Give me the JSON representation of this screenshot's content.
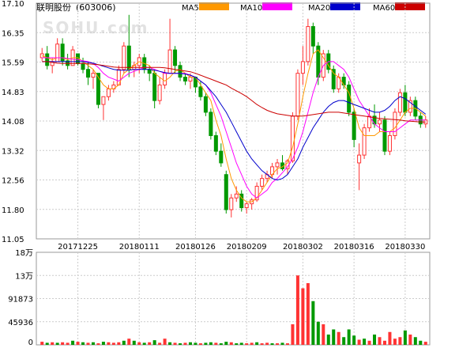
{
  "header": {
    "stock_title": "联明股份",
    "stock_code": "(603006)"
  },
  "watermark": "SOHU.com",
  "legend": [
    {
      "label": "MA5",
      "color": "#ff9900"
    },
    {
      "label": "MA10",
      "color": "#ff00ff"
    },
    {
      "label": "MA20",
      "color": "#0000cc"
    },
    {
      "label": "MA60",
      "color": "#cc0000"
    }
  ],
  "colors": {
    "up": "#ff3333",
    "down": "#009900",
    "grid": "#cccccc",
    "axis": "#999999"
  },
  "chart_data": [
    {
      "type": "candlestick",
      "y_ticks": [
        "17.10",
        "16.35",
        "15.59",
        "14.83",
        "14.08",
        "13.32",
        "12.56",
        "11.80",
        "11.05"
      ],
      "ylim": [
        11.05,
        17.1
      ],
      "x_ticks": [
        {
          "label": "20171225",
          "index": 7
        },
        {
          "label": "20180111",
          "index": 19
        },
        {
          "label": "20180126",
          "index": 30
        },
        {
          "label": "20180209",
          "index": 40
        },
        {
          "label": "20180302",
          "index": 51
        },
        {
          "label": "20180316",
          "index": 61
        },
        {
          "label": "20180330",
          "index": 71
        }
      ],
      "grid": true,
      "ohlc": [
        [
          15.7,
          15.95,
          15.62,
          15.8
        ],
        [
          15.8,
          16.0,
          15.4,
          15.5
        ],
        [
          15.5,
          15.7,
          15.3,
          15.6
        ],
        [
          15.6,
          16.2,
          15.6,
          16.05
        ],
        [
          16.05,
          16.2,
          15.5,
          15.62
        ],
        [
          15.62,
          15.8,
          15.4,
          15.5
        ],
        [
          15.5,
          16.0,
          15.5,
          15.9
        ],
        [
          15.8,
          15.8,
          15.5,
          15.55
        ],
        [
          15.55,
          15.7,
          15.3,
          15.4
        ],
        [
          15.4,
          15.6,
          15.0,
          15.2
        ],
        [
          15.2,
          15.4,
          14.9,
          15.3
        ],
        [
          15.3,
          15.3,
          14.4,
          14.5
        ],
        [
          14.5,
          14.7,
          14.1,
          14.7
        ],
        [
          14.7,
          15.0,
          14.6,
          14.9
        ],
        [
          14.9,
          15.1,
          14.8,
          15.0
        ],
        [
          15.0,
          15.5,
          15.0,
          15.4
        ],
        [
          15.4,
          16.1,
          15.3,
          16.0
        ],
        [
          16.0,
          16.8,
          15.2,
          15.4
        ],
        [
          15.4,
          15.6,
          15.2,
          15.5
        ],
        [
          15.5,
          15.8,
          15.3,
          15.7
        ],
        [
          15.7,
          15.8,
          15.3,
          15.4
        ],
        [
          15.4,
          15.5,
          15.1,
          15.3
        ],
        [
          15.3,
          15.4,
          14.4,
          14.6
        ],
        [
          14.6,
          15.2,
          14.5,
          15.0
        ],
        [
          15.0,
          15.4,
          14.9,
          15.3
        ],
        [
          15.3,
          16.7,
          15.3,
          15.9
        ],
        [
          15.9,
          16.0,
          15.3,
          15.5
        ],
        [
          15.5,
          15.6,
          15.1,
          15.2
        ],
        [
          15.2,
          15.3,
          15.0,
          15.1
        ],
        [
          15.1,
          15.3,
          14.9,
          15.2
        ],
        [
          15.2,
          15.2,
          14.8,
          14.95
        ],
        [
          14.95,
          15.1,
          14.6,
          14.7
        ],
        [
          14.7,
          14.8,
          14.2,
          14.3
        ],
        [
          14.3,
          14.4,
          13.6,
          13.7
        ],
        [
          13.7,
          13.8,
          13.2,
          13.3
        ],
        [
          13.3,
          13.5,
          12.9,
          13.0
        ],
        [
          12.7,
          12.8,
          11.7,
          11.8
        ],
        [
          11.8,
          12.2,
          11.6,
          12.1
        ],
        [
          12.1,
          12.4,
          12.0,
          12.2
        ],
        [
          12.2,
          12.3,
          11.75,
          11.85
        ],
        [
          11.85,
          12.0,
          11.7,
          11.95
        ],
        [
          11.95,
          12.1,
          11.8,
          12.05
        ],
        [
          12.05,
          12.5,
          12.0,
          12.4
        ],
        [
          12.4,
          12.7,
          12.3,
          12.6
        ],
        [
          12.6,
          12.8,
          12.5,
          12.7
        ],
        [
          12.7,
          13.0,
          12.6,
          12.9
        ],
        [
          12.9,
          13.1,
          12.7,
          13.0
        ],
        [
          13.0,
          13.2,
          12.8,
          12.85
        ],
        [
          12.85,
          13.1,
          12.7,
          13.05
        ],
        [
          13.05,
          14.3,
          13.0,
          14.2
        ],
        [
          14.2,
          15.4,
          14.1,
          15.3
        ],
        [
          15.3,
          16.0,
          15.0,
          15.6
        ],
        [
          15.6,
          16.7,
          15.5,
          16.5
        ],
        [
          16.5,
          16.6,
          15.8,
          16.0
        ],
        [
          16.0,
          16.1,
          15.0,
          15.2
        ],
        [
          15.2,
          15.9,
          15.1,
          15.8
        ],
        [
          15.8,
          15.9,
          15.3,
          15.4
        ],
        [
          15.4,
          15.5,
          14.8,
          14.9
        ],
        [
          14.9,
          15.3,
          14.8,
          15.2
        ],
        [
          15.2,
          15.3,
          14.9,
          15.0
        ],
        [
          15.0,
          15.1,
          14.2,
          14.3
        ],
        [
          14.3,
          14.4,
          13.4,
          13.6
        ],
        [
          13.0,
          13.5,
          12.3,
          13.2
        ],
        [
          13.2,
          14.0,
          13.1,
          13.9
        ],
        [
          13.9,
          14.4,
          13.8,
          14.2
        ],
        [
          14.2,
          14.5,
          13.9,
          14.0
        ],
        [
          14.0,
          14.3,
          13.8,
          14.1
        ],
        [
          14.1,
          14.2,
          13.2,
          13.3
        ],
        [
          13.3,
          13.8,
          13.2,
          13.7
        ],
        [
          13.7,
          14.4,
          13.6,
          14.3
        ],
        [
          14.3,
          14.9,
          14.2,
          14.8
        ],
        [
          14.8,
          15.0,
          14.2,
          14.3
        ],
        [
          14.3,
          14.7,
          14.2,
          14.6
        ],
        [
          14.6,
          14.7,
          14.1,
          14.2
        ],
        [
          14.2,
          14.3,
          13.9,
          14.0
        ],
        [
          14.0,
          14.2,
          13.9,
          14.1
        ]
      ],
      "series": [
        {
          "name": "MA5",
          "values": [
            15.75,
            15.7,
            15.65,
            15.7,
            15.7,
            15.65,
            15.7,
            15.7,
            15.6,
            15.5,
            15.4,
            15.2,
            15.0,
            14.9,
            14.9,
            15.0,
            15.3,
            15.4,
            15.5,
            15.6,
            15.55,
            15.5,
            15.3,
            15.2,
            15.1,
            15.2,
            15.35,
            15.4,
            15.3,
            15.2,
            15.2,
            15.0,
            14.8,
            14.6,
            14.1,
            13.7,
            13.1,
            12.6,
            12.3,
            12.1,
            12.0,
            12.0,
            12.1,
            12.3,
            12.5,
            12.7,
            12.85,
            12.9,
            13.0,
            13.4,
            14.0,
            14.7,
            15.3,
            15.8,
            15.9,
            15.7,
            15.5,
            15.3,
            15.2,
            15.0,
            14.8,
            14.4,
            13.9,
            13.7,
            13.7,
            13.7,
            13.8,
            13.8,
            13.8,
            13.9,
            14.1,
            14.3,
            14.4,
            14.4,
            14.3,
            14.2
          ]
        },
        {
          "name": "MA10",
          "values": [
            15.7,
            15.7,
            15.7,
            15.7,
            15.7,
            15.68,
            15.66,
            15.65,
            15.62,
            15.6,
            15.55,
            15.45,
            15.3,
            15.2,
            15.15,
            15.1,
            15.2,
            15.3,
            15.35,
            15.4,
            15.45,
            15.45,
            15.4,
            15.35,
            15.3,
            15.3,
            15.3,
            15.3,
            15.3,
            15.25,
            15.2,
            15.1,
            15.0,
            14.8,
            14.5,
            14.2,
            13.8,
            13.4,
            13.0,
            12.7,
            12.4,
            12.2,
            12.1,
            12.2,
            12.3,
            12.5,
            12.6,
            12.75,
            12.9,
            13.1,
            13.4,
            13.8,
            14.3,
            14.8,
            15.2,
            15.5,
            15.6,
            15.6,
            15.5,
            15.4,
            15.2,
            14.9,
            14.6,
            14.4,
            14.2,
            14.0,
            13.9,
            13.8,
            13.8,
            13.8,
            13.9,
            14.0,
            14.1,
            14.1,
            14.1,
            14.1
          ]
        },
        {
          "name": "MA20",
          "values": [
            15.6,
            15.6,
            15.6,
            15.6,
            15.6,
            15.6,
            15.6,
            15.6,
            15.6,
            15.58,
            15.56,
            15.52,
            15.48,
            15.44,
            15.4,
            15.38,
            15.38,
            15.38,
            15.4,
            15.4,
            15.4,
            15.4,
            15.38,
            15.35,
            15.32,
            15.3,
            15.3,
            15.3,
            15.28,
            15.25,
            15.2,
            15.1,
            15.0,
            14.85,
            14.7,
            14.5,
            14.3,
            14.05,
            13.8,
            13.55,
            13.3,
            13.1,
            12.95,
            12.8,
            12.7,
            12.6,
            12.56,
            12.6,
            12.7,
            12.9,
            13.1,
            13.4,
            13.65,
            13.9,
            14.1,
            14.3,
            14.45,
            14.55,
            14.6,
            14.6,
            14.55,
            14.5,
            14.45,
            14.4,
            14.35,
            14.3,
            14.3,
            14.35,
            14.45,
            14.6,
            14.7,
            14.65,
            14.55,
            14.45,
            14.35,
            14.25
          ]
        },
        {
          "name": "MA60",
          "values": [
            15.6,
            15.6,
            15.58,
            15.56,
            15.55,
            15.55,
            15.55,
            15.55,
            15.55,
            15.54,
            15.53,
            15.52,
            15.5,
            15.48,
            15.46,
            15.45,
            15.45,
            15.45,
            15.45,
            15.45,
            15.45,
            15.45,
            15.45,
            15.45,
            15.44,
            15.42,
            15.4,
            15.38,
            15.36,
            15.34,
            15.3,
            15.25,
            15.2,
            15.15,
            15.1,
            15.05,
            15.0,
            14.92,
            14.85,
            14.78,
            14.7,
            14.6,
            14.5,
            14.42,
            14.35,
            14.3,
            14.26,
            14.24,
            14.22,
            14.2,
            14.2,
            14.2,
            14.22,
            14.24,
            14.26,
            14.28,
            14.3,
            14.3,
            14.3,
            14.28,
            14.26,
            14.24,
            14.22,
            14.2,
            14.18,
            14.16,
            14.14,
            14.13,
            14.12,
            14.11,
            14.1,
            14.08,
            14.07,
            14.06,
            14.05,
            14.05
          ]
        }
      ]
    },
    {
      "type": "bar",
      "y_ticks": [
        "18万",
        "13万",
        "91873",
        "45936",
        "0"
      ],
      "ylim": [
        0,
        180000
      ],
      "volumes": [
        [
          6000,
          "up"
        ],
        [
          4000,
          "down"
        ],
        [
          5000,
          "up"
        ],
        [
          4000,
          "down"
        ],
        [
          5000,
          "up"
        ],
        [
          4000,
          "up"
        ],
        [
          8000,
          "down"
        ],
        [
          6000,
          "up"
        ],
        [
          5000,
          "down"
        ],
        [
          4000,
          "up"
        ],
        [
          5000,
          "down"
        ],
        [
          3000,
          "up"
        ],
        [
          6000,
          "down"
        ],
        [
          5000,
          "up"
        ],
        [
          4000,
          "up"
        ],
        [
          5000,
          "up"
        ],
        [
          8000,
          "down"
        ],
        [
          12000,
          "up"
        ],
        [
          8000,
          "down"
        ],
        [
          5000,
          "up"
        ],
        [
          4000,
          "down"
        ],
        [
          5000,
          "up"
        ],
        [
          9000,
          "down"
        ],
        [
          4000,
          "up"
        ],
        [
          12000,
          "up"
        ],
        [
          5000,
          "down"
        ],
        [
          4000,
          "up"
        ],
        [
          3000,
          "down"
        ],
        [
          4000,
          "up"
        ],
        [
          5000,
          "down"
        ],
        [
          4000,
          "down"
        ],
        [
          3000,
          "up"
        ],
        [
          4000,
          "down"
        ],
        [
          5000,
          "down"
        ],
        [
          4000,
          "up"
        ],
        [
          3000,
          "down"
        ],
        [
          6000,
          "down"
        ],
        [
          5000,
          "up"
        ],
        [
          3000,
          "down"
        ],
        [
          4000,
          "down"
        ],
        [
          3000,
          "up"
        ],
        [
          4000,
          "up"
        ],
        [
          5000,
          "down"
        ],
        [
          3000,
          "up"
        ],
        [
          4000,
          "up"
        ],
        [
          3000,
          "down"
        ],
        [
          3000,
          "up"
        ],
        [
          4000,
          "down"
        ],
        [
          3000,
          "up"
        ],
        [
          40000,
          "up"
        ],
        [
          135000,
          "up"
        ],
        [
          110000,
          "up"
        ],
        [
          120000,
          "up"
        ],
        [
          85000,
          "down"
        ],
        [
          45000,
          "down"
        ],
        [
          40000,
          "up"
        ],
        [
          20000,
          "down"
        ],
        [
          30000,
          "down"
        ],
        [
          25000,
          "up"
        ],
        [
          15000,
          "down"
        ],
        [
          30000,
          "down"
        ],
        [
          18000,
          "down"
        ],
        [
          10000,
          "up"
        ],
        [
          12000,
          "down"
        ],
        [
          8000,
          "up"
        ],
        [
          20000,
          "down"
        ],
        [
          15000,
          "up"
        ],
        [
          8000,
          "up"
        ],
        [
          25000,
          "up"
        ],
        [
          12000,
          "up"
        ],
        [
          15000,
          "up"
        ],
        [
          28000,
          "down"
        ],
        [
          20000,
          "up"
        ],
        [
          15000,
          "down"
        ],
        [
          8000,
          "down"
        ],
        [
          6000,
          "up"
        ]
      ]
    }
  ]
}
